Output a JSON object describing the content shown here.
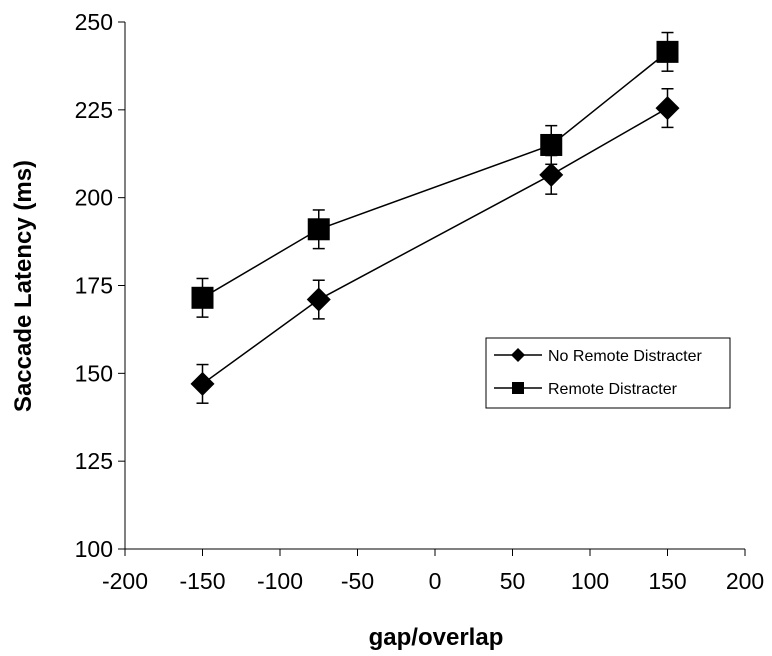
{
  "chart_data": {
    "type": "line",
    "title": "",
    "xlabel": "gap/overlap",
    "ylabel": "Saccade Latency (ms)",
    "xlim": [
      -200,
      200
    ],
    "ylim": [
      100,
      250
    ],
    "x_ticks": [
      -200,
      -150,
      -100,
      -50,
      0,
      50,
      100,
      150,
      200
    ],
    "y_ticks": [
      100,
      125,
      150,
      175,
      200,
      225,
      250
    ],
    "x_tick_labels": [
      "-200",
      "-150",
      "-100",
      "-50",
      "0",
      "50",
      "100",
      "150",
      "200"
    ],
    "y_tick_labels": [
      "100",
      "125",
      "150",
      "175",
      "200",
      "225",
      "250"
    ],
    "grid": false,
    "legend_position": "right",
    "x": [
      -150,
      -75,
      75,
      150
    ],
    "series": [
      {
        "name": "No Remote Distracter",
        "marker": "diamond",
        "color": "#000000",
        "values": [
          147,
          171,
          206.5,
          225.5
        ],
        "error": [
          5.5,
          5.5,
          5.5,
          5.5
        ]
      },
      {
        "name": "Remote Distracter",
        "marker": "square",
        "color": "#000000",
        "values": [
          171.5,
          191,
          215,
          241.5
        ],
        "error": [
          5.5,
          5.5,
          5.5,
          5.5
        ]
      }
    ]
  }
}
